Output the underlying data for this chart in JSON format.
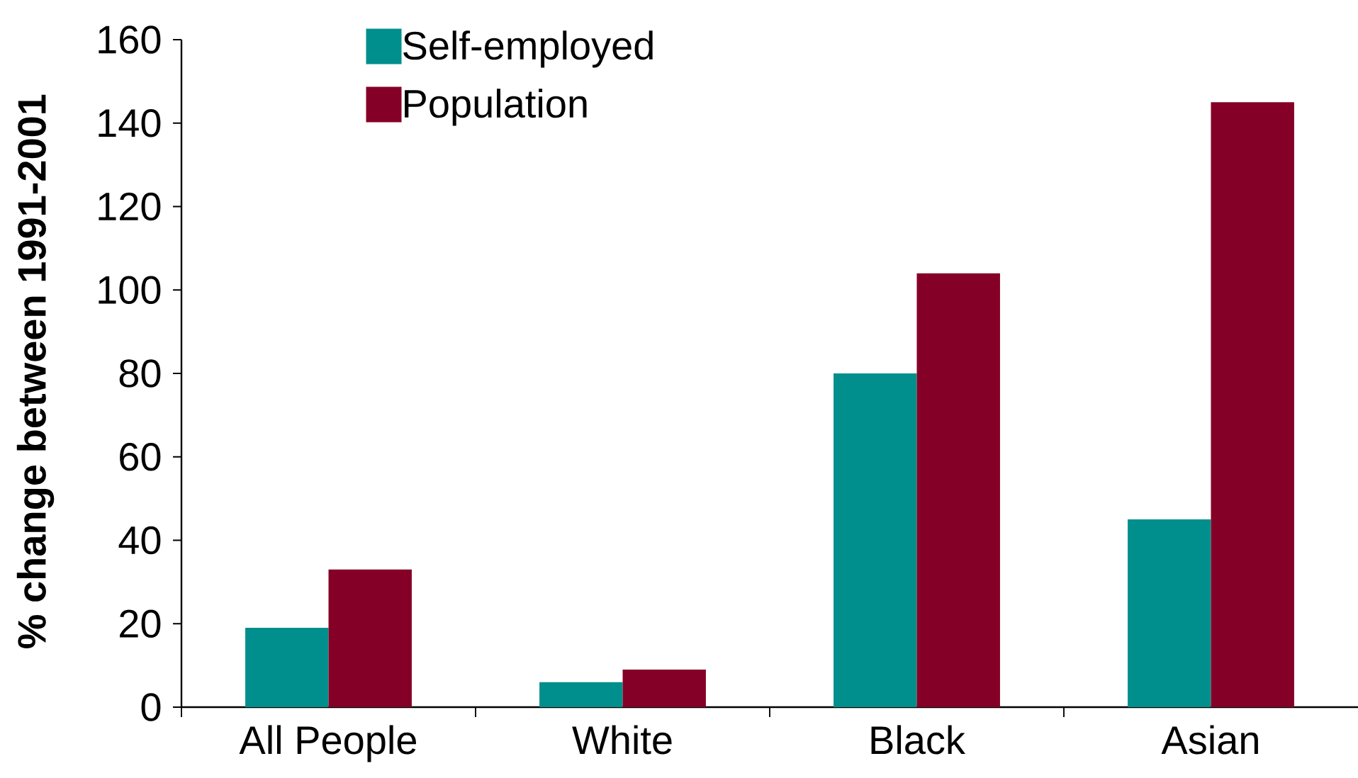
{
  "chart_data": {
    "type": "bar",
    "ylabel": "% change between 1991-2001",
    "categories": [
      "All People",
      "White",
      "Black",
      "Asian"
    ],
    "series": [
      {
        "name": "Self-employed",
        "color": "#008f8c",
        "values": [
          19,
          6,
          80,
          45
        ]
      },
      {
        "name": "Population",
        "color": "#850026",
        "values": [
          33,
          9,
          104,
          145
        ]
      }
    ],
    "ylim": [
      0,
      160
    ],
    "yticks": [
      0,
      20,
      40,
      60,
      80,
      100,
      120,
      140,
      160
    ],
    "legend": "top left"
  }
}
